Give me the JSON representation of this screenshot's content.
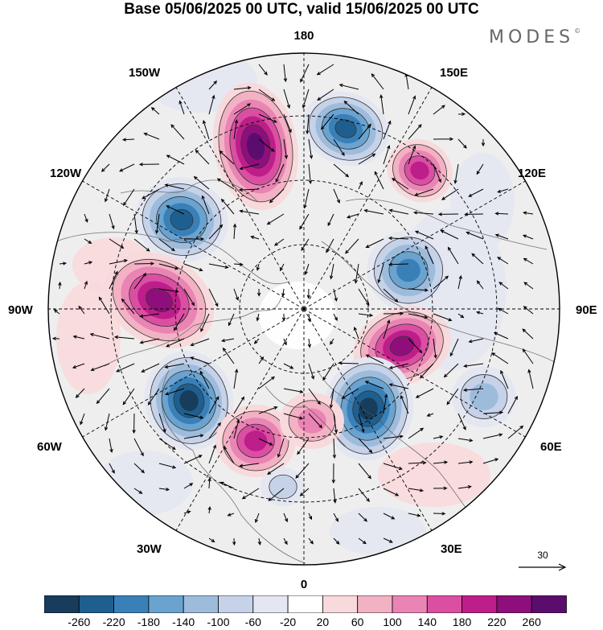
{
  "title": "Base 05/06/2025 00 UTC, valid 15/06/2025 00 UTC",
  "brand": {
    "name": "MODES",
    "mark": "©"
  },
  "longitude_labels": {
    "n180": "180",
    "w150": "150W",
    "e150": "150E",
    "w120": "120W",
    "e120": "120E",
    "w90": "90W",
    "e90": "90E",
    "w60": "60W",
    "e60": "60E",
    "w30": "30W",
    "e30": "30E",
    "s0": "0"
  },
  "map": {
    "projection": "north-polar-stereographic",
    "grid": "dashed meridians every 30° and latitude circles",
    "anomaly_centers": [
      {
        "sign": "positive",
        "strength": 260,
        "lon": "165W"
      },
      {
        "sign": "negative",
        "strength": -240,
        "lon": "165E"
      },
      {
        "sign": "positive",
        "strength": 180,
        "lon": "135E"
      },
      {
        "sign": "negative",
        "strength": -240,
        "lon": "130W"
      },
      {
        "sign": "negative",
        "strength": -200,
        "lon": "115E"
      },
      {
        "sign": "positive",
        "strength": 240,
        "lon": "95W"
      },
      {
        "sign": "positive",
        "strength": 220,
        "lon": "75E"
      },
      {
        "sign": "negative",
        "strength": -120,
        "lon": "60E"
      },
      {
        "sign": "negative",
        "strength": -260,
        "lon": "40E"
      },
      {
        "sign": "negative",
        "strength": -260,
        "lon": "60W"
      },
      {
        "sign": "positive",
        "strength": 200,
        "lon": "35W"
      },
      {
        "sign": "positive",
        "strength": 120,
        "lon": "10E"
      },
      {
        "sign": "negative",
        "strength": -60,
        "lon": "15W"
      }
    ]
  },
  "wind_reference": {
    "value": "30"
  },
  "colorbar": {
    "ticks": [
      "-260",
      "-220",
      "-180",
      "-140",
      "-100",
      "-60",
      "-20",
      "20",
      "60",
      "100",
      "140",
      "180",
      "220",
      "260"
    ],
    "colors": [
      "#173c5c",
      "#1f5f8f",
      "#3a80b8",
      "#6aa3cf",
      "#9dbcdc",
      "#c6d2e8",
      "#e4e7f1",
      "#ffffff",
      "#f8d9dc",
      "#f2b2c4",
      "#ea84b4",
      "#db4fa2",
      "#bd1e8a",
      "#8e0f7c",
      "#5b0d6e"
    ]
  }
}
